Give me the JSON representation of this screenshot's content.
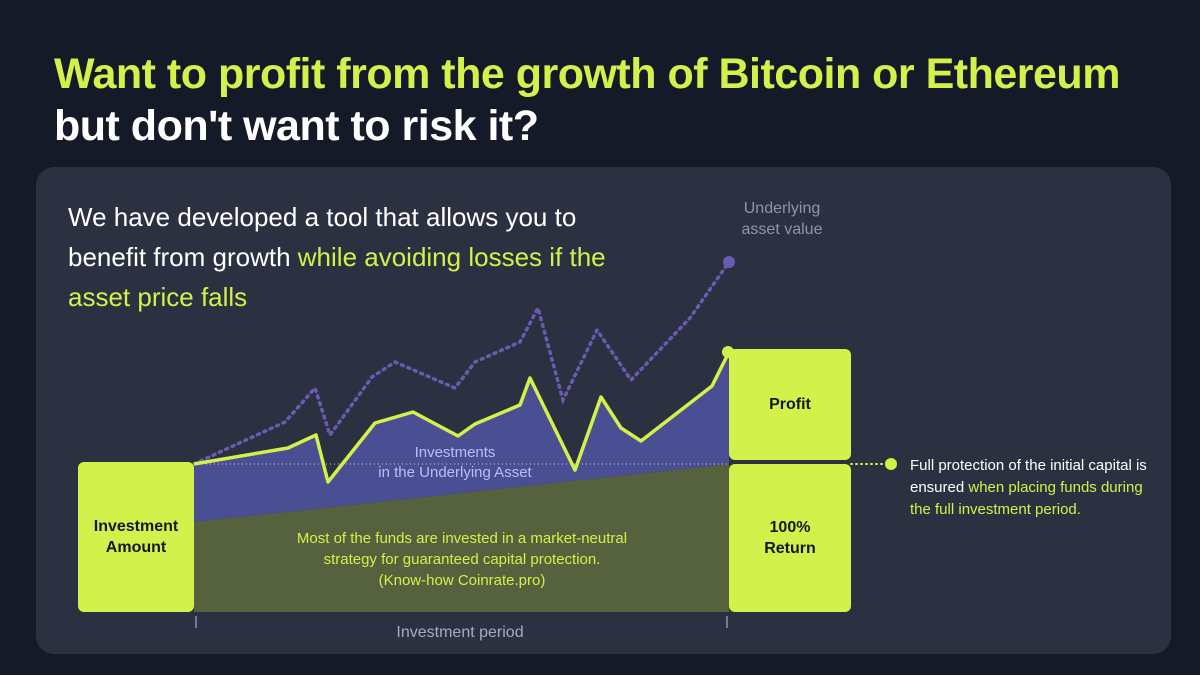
{
  "header": {
    "line1": "Want to profit from the growth of Bitcoin or Ethereum",
    "line2": "but don't want to risk it?"
  },
  "intro": {
    "text_plain": "We have developed a tool that allows you to benefit from growth ",
    "text_highlight": "while avoiding losses if the asset price falls"
  },
  "diagram": {
    "underlying_asset_label_1": "Underlying",
    "underlying_asset_label_2": "asset value",
    "investments_label_1": "Investments",
    "investments_label_2": "in the Underlying Asset",
    "market_neutral_1": "Most of the funds are invested in a market-neutral",
    "market_neutral_2": "strategy for guaranteed capital protection.",
    "market_neutral_3": "(Know-how Coinrate.pro)",
    "investment_period": "Investment period",
    "box_investment_1": "Investment",
    "box_investment_2": "Amount",
    "box_profit": "Profit",
    "box_return_1": "100%",
    "box_return_2": "Return"
  },
  "protection": {
    "text_plain": "Full protection of the initial capital is ensured ",
    "text_highlight": "when placing funds during the full investment period."
  },
  "colors": {
    "background": "#151a28",
    "panel": "#2c3142",
    "accent": "#d4f04a",
    "investment_area": "#4a4f93",
    "protected_area": "#56623e",
    "dotted_line": "#6b5bb0"
  }
}
